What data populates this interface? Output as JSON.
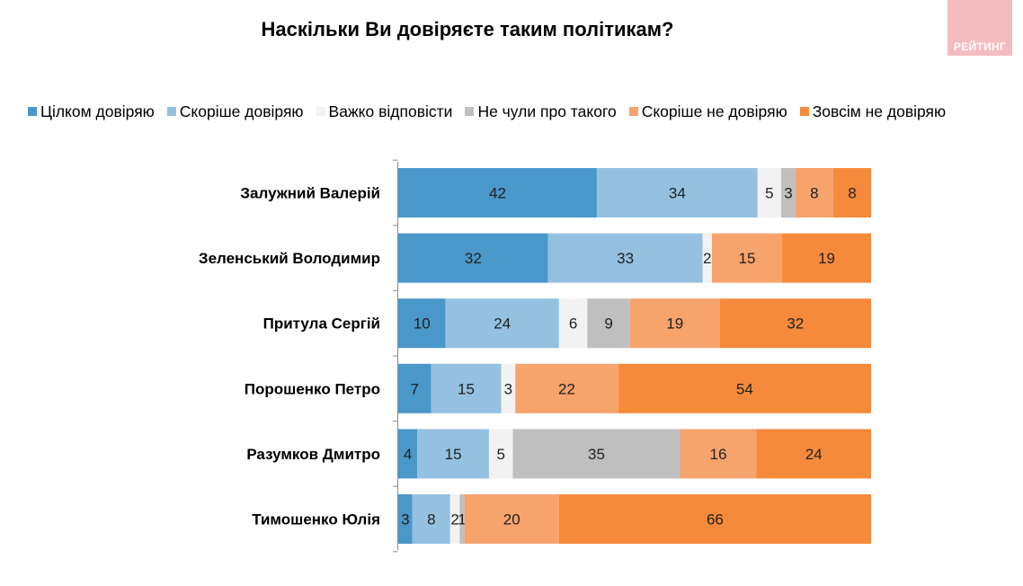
{
  "title": "Наскільки Ви довіряєте таким політикам?",
  "logo_text": "РЕЙТИНГ",
  "chart_data": {
    "type": "bar",
    "orientation": "horizontal",
    "stacked": true,
    "title": "Наскільки Ви довіряєте таким політикам?",
    "xlabel": "",
    "ylabel": "",
    "xlim": [
      0,
      100
    ],
    "legend_position": "top",
    "grid": false,
    "categories": [
      "Залужний Валерій",
      "Зеленський Володимир",
      "Притула Сергій",
      "Порошенко Петро",
      "Разумков Дмитро",
      "Тимошенко Юлія"
    ],
    "series": [
      {
        "name": "Цілком довіряю",
        "color": "#4a97c9",
        "values": [
          42,
          32,
          10,
          7,
          4,
          3
        ]
      },
      {
        "name": "Скоріше довіряю",
        "color": "#94c1e0",
        "values": [
          34,
          33,
          24,
          15,
          15,
          8
        ]
      },
      {
        "name": "Важко відповісти",
        "color": "#f2f2f2",
        "values": [
          5,
          2,
          6,
          3,
          5,
          2
        ]
      },
      {
        "name": "Не чули про такого",
        "color": "#bfbfbf",
        "values": [
          3,
          0,
          9,
          0,
          35,
          1
        ]
      },
      {
        "name": "Скоріше не довіряю",
        "color": "#f6a36c",
        "values": [
          8,
          15,
          19,
          22,
          16,
          20
        ]
      },
      {
        "name": "Зовсім не довіряю",
        "color": "#f58a3c",
        "values": [
          8,
          19,
          32,
          54,
          24,
          66
        ]
      }
    ]
  }
}
